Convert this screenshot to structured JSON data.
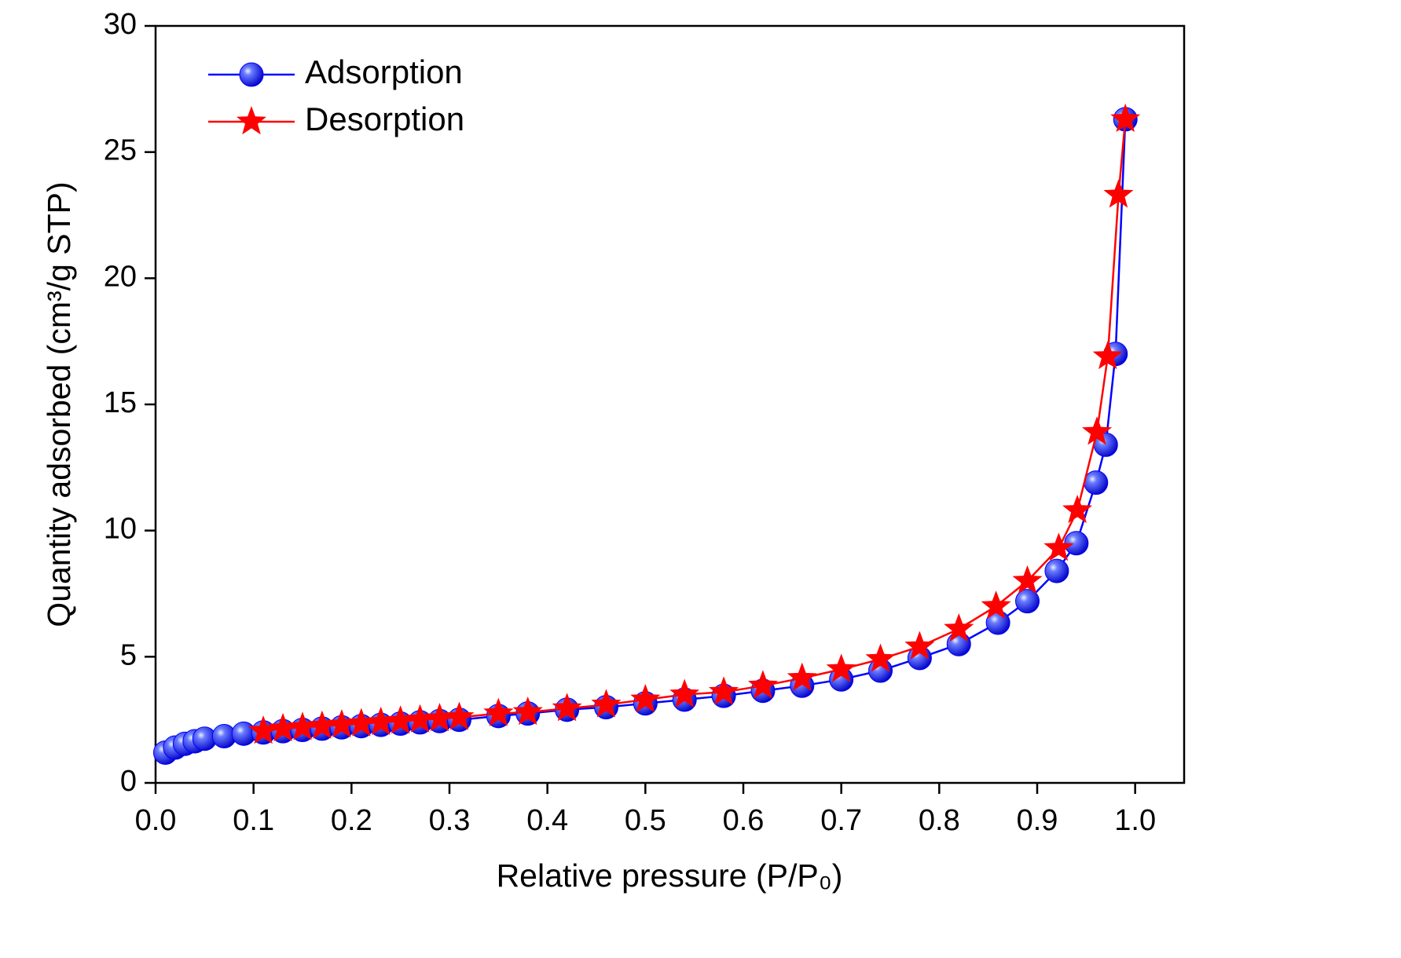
{
  "chart_data": {
    "type": "line",
    "x_label": "Relative pressure (P/P₀)",
    "y_label": "Quantity adsorbed (cm³/g STP)",
    "xlim": [
      0,
      1.05
    ],
    "ylim": [
      0,
      30
    ],
    "xticks": [
      {
        "value": 0,
        "label": "0.0"
      },
      0.1,
      0.2,
      0.3,
      0.4,
      0.5,
      0.6,
      0.7,
      0.8,
      0.9,
      {
        "value": 1,
        "label": "1.0"
      }
    ],
    "yticks": [
      0,
      5,
      10,
      15,
      20,
      25,
      30
    ],
    "legend": "upper left",
    "series": [
      {
        "name": "Adsorption",
        "color": "#0000ff",
        "marker": "sphere",
        "x": [
          0.01,
          0.02,
          0.03,
          0.04,
          0.05,
          0.07,
          0.09,
          0.11,
          0.13,
          0.15,
          0.17,
          0.19,
          0.21,
          0.23,
          0.25,
          0.27,
          0.29,
          0.31,
          0.35,
          0.38,
          0.42,
          0.46,
          0.5,
          0.54,
          0.58,
          0.62,
          0.66,
          0.7,
          0.74,
          0.78,
          0.82,
          0.86,
          0.89,
          0.92,
          0.94,
          0.96,
          0.97,
          0.98,
          0.99
        ],
        "values": [
          1.2,
          1.4,
          1.55,
          1.65,
          1.75,
          1.85,
          1.95,
          2.0,
          2.05,
          2.1,
          2.15,
          2.2,
          2.25,
          2.3,
          2.35,
          2.4,
          2.45,
          2.5,
          2.65,
          2.75,
          2.9,
          3.0,
          3.15,
          3.3,
          3.45,
          3.65,
          3.85,
          4.1,
          4.45,
          4.95,
          5.5,
          6.35,
          7.2,
          8.4,
          9.5,
          11.9,
          13.4,
          17.0,
          26.3
        ]
      },
      {
        "name": "Desorption",
        "color": "#ff0000",
        "marker": "star",
        "x": [
          0.99,
          0.983,
          0.972,
          0.961,
          0.941,
          0.922,
          0.89,
          0.858,
          0.82,
          0.78,
          0.74,
          0.7,
          0.66,
          0.62,
          0.58,
          0.54,
          0.5,
          0.46,
          0.42,
          0.38,
          0.35,
          0.31,
          0.29,
          0.27,
          0.25,
          0.23,
          0.21,
          0.19,
          0.17,
          0.15,
          0.13,
          0.11
        ],
        "values": [
          26.3,
          23.3,
          16.9,
          13.9,
          10.8,
          9.3,
          8.0,
          7.0,
          6.1,
          5.4,
          4.9,
          4.5,
          4.15,
          3.85,
          3.6,
          3.5,
          3.3,
          3.1,
          2.95,
          2.8,
          2.75,
          2.6,
          2.55,
          2.5,
          2.45,
          2.4,
          2.35,
          2.3,
          2.25,
          2.2,
          2.15,
          2.05
        ]
      }
    ]
  }
}
